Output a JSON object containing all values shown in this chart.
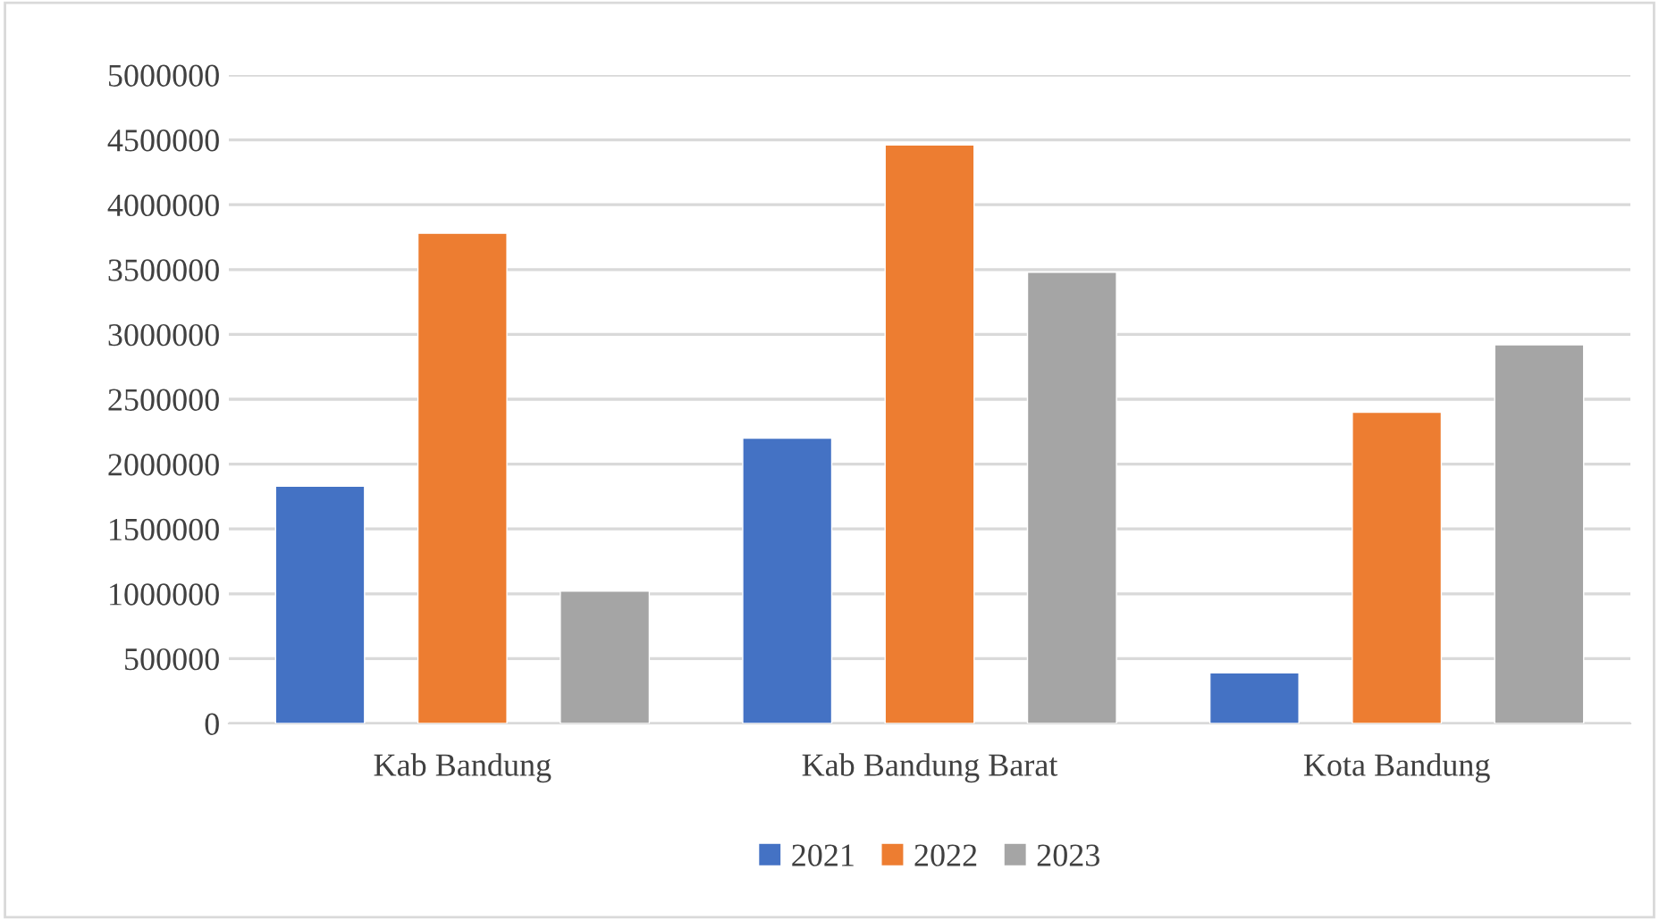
{
  "chart_data": {
    "type": "bar",
    "categories": [
      "Kab Bandung",
      "Kab Bandung Barat",
      "Kota Bandung"
    ],
    "series": [
      {
        "name": "2021",
        "color": "#4472c4",
        "values": [
          1830000,
          2200000,
          390000
        ]
      },
      {
        "name": "2022",
        "color": "#ed7d31",
        "values": [
          3780000,
          4460000,
          2400000
        ]
      },
      {
        "name": "2023",
        "color": "#a5a5a5",
        "values": [
          1020000,
          3480000,
          2920000
        ]
      }
    ],
    "ylim": [
      0,
      5000000
    ],
    "yticks": [
      0,
      500000,
      1000000,
      1500000,
      2000000,
      2500000,
      3000000,
      3500000,
      4000000,
      4500000,
      5000000
    ],
    "grid": "y",
    "legend": "bottom"
  }
}
